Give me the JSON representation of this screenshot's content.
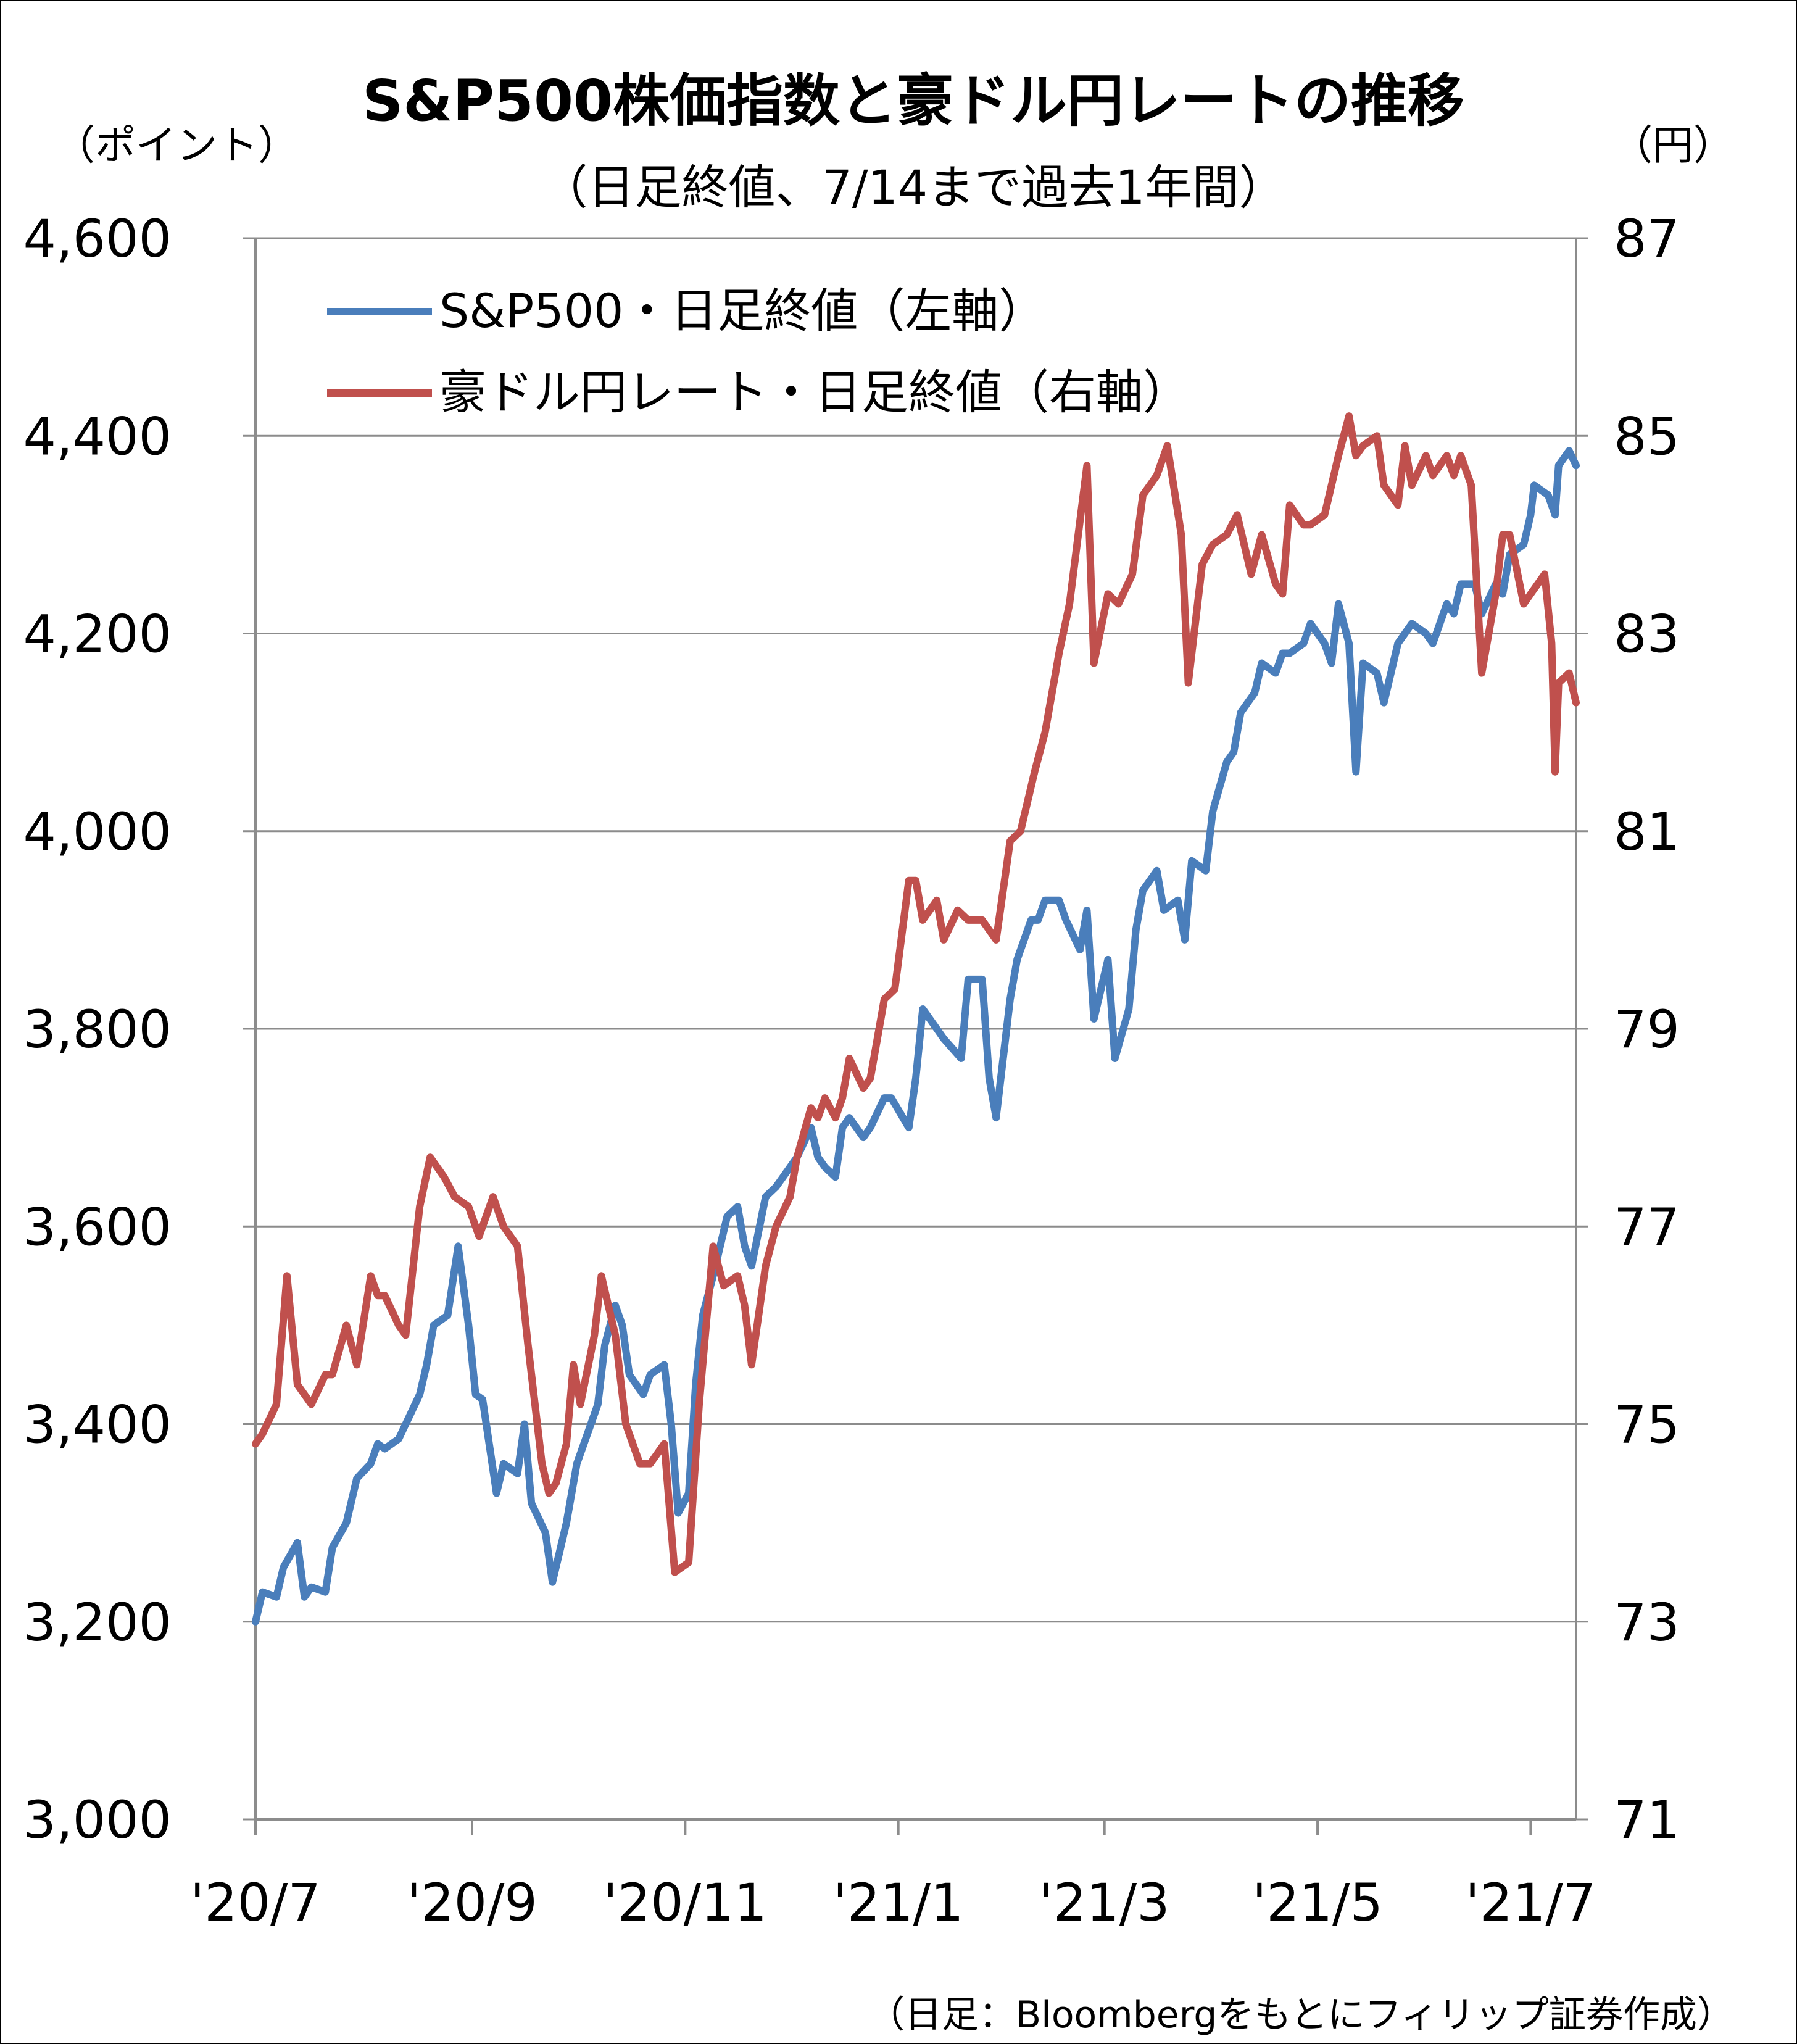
{
  "chart_data": {
    "type": "line",
    "title": "S&P500株価指数と豪ドル円レートの推移",
    "subtitle": "（日足終値、7/14まで過去1年間）",
    "y_left_unit": "（ポイント）",
    "y_right_unit": "（円）",
    "source": "（日足：Bloombergをもとにフィリップ証券作成）",
    "x_ticks": [
      "'20/7",
      "'20/9",
      "'20/11",
      "'21/1",
      "'21/3",
      "'21/5",
      "'21/7"
    ],
    "y_left_ticks": [
      "3,000",
      "3,200",
      "3,400",
      "3,600",
      "3,800",
      "4,000",
      "4,200",
      "4,400",
      "4,600"
    ],
    "y_right_ticks": [
      "71",
      "73",
      "75",
      "77",
      "79",
      "81",
      "83",
      "85",
      "87"
    ],
    "y_left_range": [
      3000,
      4600
    ],
    "y_right_range": [
      71,
      87
    ],
    "x_range": [
      "2020-07-01",
      "2021-07-14"
    ],
    "grid": "horizontal",
    "legend_position": "top-left",
    "series": [
      {
        "name": "S&P500・日足終値（左軸）",
        "axis": "left",
        "color": "#4a7ebb",
        "points": [
          [
            "2020-07-01",
            3200
          ],
          [
            "2020-07-03",
            3230
          ],
          [
            "2020-07-07",
            3225
          ],
          [
            "2020-07-09",
            3255
          ],
          [
            "2020-07-13",
            3280
          ],
          [
            "2020-07-15",
            3225
          ],
          [
            "2020-07-17",
            3235
          ],
          [
            "2020-07-21",
            3230
          ],
          [
            "2020-07-23",
            3275
          ],
          [
            "2020-07-27",
            3300
          ],
          [
            "2020-07-30",
            3345
          ],
          [
            "2020-08-03",
            3360
          ],
          [
            "2020-08-05",
            3380
          ],
          [
            "2020-08-07",
            3375
          ],
          [
            "2020-08-11",
            3385
          ],
          [
            "2020-08-13",
            3400
          ],
          [
            "2020-08-17",
            3430
          ],
          [
            "2020-08-19",
            3460
          ],
          [
            "2020-08-21",
            3500
          ],
          [
            "2020-08-25",
            3510
          ],
          [
            "2020-08-28",
            3580
          ],
          [
            "2020-08-31",
            3500
          ],
          [
            "2020-09-02",
            3430
          ],
          [
            "2020-09-04",
            3425
          ],
          [
            "2020-09-08",
            3330
          ],
          [
            "2020-09-10",
            3360
          ],
          [
            "2020-09-14",
            3350
          ],
          [
            "2020-09-16",
            3400
          ],
          [
            "2020-09-18",
            3320
          ],
          [
            "2020-09-22",
            3290
          ],
          [
            "2020-09-24",
            3240
          ],
          [
            "2020-09-28",
            3300
          ],
          [
            "2020-10-01",
            3360
          ],
          [
            "2020-10-05",
            3400
          ],
          [
            "2020-10-07",
            3420
          ],
          [
            "2020-10-09",
            3480
          ],
          [
            "2020-10-12",
            3520
          ],
          [
            "2020-10-14",
            3500
          ],
          [
            "2020-10-16",
            3450
          ],
          [
            "2020-10-20",
            3430
          ],
          [
            "2020-10-22",
            3450
          ],
          [
            "2020-10-26",
            3460
          ],
          [
            "2020-10-28",
            3400
          ],
          [
            "2020-10-30",
            3310
          ],
          [
            "2020-11-02",
            3330
          ],
          [
            "2020-11-04",
            3440
          ],
          [
            "2020-11-06",
            3510
          ],
          [
            "2020-11-09",
            3550
          ],
          [
            "2020-11-11",
            3580
          ],
          [
            "2020-11-13",
            3610
          ],
          [
            "2020-11-16",
            3620
          ],
          [
            "2020-11-18",
            3580
          ],
          [
            "2020-11-20",
            3560
          ],
          [
            "2020-11-24",
            3630
          ],
          [
            "2020-11-27",
            3640
          ],
          [
            "2020-12-01",
            3660
          ],
          [
            "2020-12-03",
            3670
          ],
          [
            "2020-12-07",
            3700
          ],
          [
            "2020-12-09",
            3670
          ],
          [
            "2020-12-11",
            3660
          ],
          [
            "2020-12-14",
            3650
          ],
          [
            "2020-12-16",
            3700
          ],
          [
            "2020-12-18",
            3710
          ],
          [
            "2020-12-22",
            3690
          ],
          [
            "2020-12-24",
            3700
          ],
          [
            "2020-12-28",
            3730
          ],
          [
            "2020-12-30",
            3730
          ],
          [
            "2021-01-04",
            3700
          ],
          [
            "2021-01-06",
            3750
          ],
          [
            "2021-01-08",
            3820
          ],
          [
            "2021-01-12",
            3800
          ],
          [
            "2021-01-14",
            3790
          ],
          [
            "2021-01-19",
            3770
          ],
          [
            "2021-01-21",
            3850
          ],
          [
            "2021-01-25",
            3850
          ],
          [
            "2021-01-27",
            3750
          ],
          [
            "2021-01-29",
            3710
          ],
          [
            "2021-02-02",
            3830
          ],
          [
            "2021-02-04",
            3870
          ],
          [
            "2021-02-08",
            3910
          ],
          [
            "2021-02-10",
            3910
          ],
          [
            "2021-02-12",
            3930
          ],
          [
            "2021-02-16",
            3930
          ],
          [
            "2021-02-18",
            3910
          ],
          [
            "2021-02-22",
            3880
          ],
          [
            "2021-02-24",
            3920
          ],
          [
            "2021-02-26",
            3810
          ],
          [
            "2021-03-02",
            3870
          ],
          [
            "2021-03-04",
            3770
          ],
          [
            "2021-03-08",
            3820
          ],
          [
            "2021-03-10",
            3900
          ],
          [
            "2021-03-12",
            3940
          ],
          [
            "2021-03-16",
            3960
          ],
          [
            "2021-03-18",
            3920
          ],
          [
            "2021-03-22",
            3930
          ],
          [
            "2021-03-24",
            3890
          ],
          [
            "2021-03-26",
            3970
          ],
          [
            "2021-03-30",
            3960
          ],
          [
            "2021-04-01",
            4020
          ],
          [
            "2021-04-05",
            4070
          ],
          [
            "2021-04-07",
            4080
          ],
          [
            "2021-04-09",
            4120
          ],
          [
            "2021-04-13",
            4140
          ],
          [
            "2021-04-15",
            4170
          ],
          [
            "2021-04-19",
            4160
          ],
          [
            "2021-04-21",
            4180
          ],
          [
            "2021-04-23",
            4180
          ],
          [
            "2021-04-27",
            4190
          ],
          [
            "2021-04-29",
            4210
          ],
          [
            "2021-05-03",
            4190
          ],
          [
            "2021-05-05",
            4170
          ],
          [
            "2021-05-07",
            4230
          ],
          [
            "2021-05-10",
            4190
          ],
          [
            "2021-05-12",
            4060
          ],
          [
            "2021-05-14",
            4170
          ],
          [
            "2021-05-18",
            4160
          ],
          [
            "2021-05-20",
            4130
          ],
          [
            "2021-05-24",
            4190
          ],
          [
            "2021-05-26",
            4200
          ],
          [
            "2021-05-28",
            4210
          ],
          [
            "2021-06-01",
            4200
          ],
          [
            "2021-06-03",
            4190
          ],
          [
            "2021-06-07",
            4230
          ],
          [
            "2021-06-09",
            4220
          ],
          [
            "2021-06-11",
            4250
          ],
          [
            "2021-06-15",
            4250
          ],
          [
            "2021-06-17",
            4220
          ],
          [
            "2021-06-21",
            4250
          ],
          [
            "2021-06-23",
            4240
          ],
          [
            "2021-06-25",
            4280
          ],
          [
            "2021-06-29",
            4290
          ],
          [
            "2021-07-01",
            4320
          ],
          [
            "2021-07-02",
            4350
          ],
          [
            "2021-07-06",
            4340
          ],
          [
            "2021-07-08",
            4320
          ],
          [
            "2021-07-09",
            4370
          ],
          [
            "2021-07-12",
            4385
          ],
          [
            "2021-07-14",
            4370
          ]
        ]
      },
      {
        "name": "豪ドル円レート・日足終値（右軸）",
        "axis": "right",
        "color": "#c0504d",
        "points": [
          [
            "2020-07-01",
            74.8
          ],
          [
            "2020-07-03",
            74.9
          ],
          [
            "2020-07-07",
            75.2
          ],
          [
            "2020-07-10",
            76.5
          ],
          [
            "2020-07-13",
            75.4
          ],
          [
            "2020-07-15",
            75.3
          ],
          [
            "2020-07-17",
            75.2
          ],
          [
            "2020-07-21",
            75.5
          ],
          [
            "2020-07-23",
            75.5
          ],
          [
            "2020-07-27",
            76.0
          ],
          [
            "2020-07-30",
            75.6
          ],
          [
            "2020-08-03",
            76.5
          ],
          [
            "2020-08-05",
            76.3
          ],
          [
            "2020-08-07",
            76.3
          ],
          [
            "2020-08-11",
            76.0
          ],
          [
            "2020-08-13",
            75.9
          ],
          [
            "2020-08-17",
            77.2
          ],
          [
            "2020-08-20",
            77.7
          ],
          [
            "2020-08-24",
            77.5
          ],
          [
            "2020-08-27",
            77.3
          ],
          [
            "2020-08-31",
            77.2
          ],
          [
            "2020-09-03",
            76.9
          ],
          [
            "2020-09-07",
            77.3
          ],
          [
            "2020-09-10",
            77.0
          ],
          [
            "2020-09-14",
            76.8
          ],
          [
            "2020-09-17",
            75.8
          ],
          [
            "2020-09-21",
            74.6
          ],
          [
            "2020-09-23",
            74.3
          ],
          [
            "2020-09-25",
            74.4
          ],
          [
            "2020-09-28",
            74.8
          ],
          [
            "2020-09-30",
            75.6
          ],
          [
            "2020-10-02",
            75.2
          ],
          [
            "2020-10-06",
            75.9
          ],
          [
            "2020-10-08",
            76.5
          ],
          [
            "2020-10-12",
            75.9
          ],
          [
            "2020-10-15",
            75.0
          ],
          [
            "2020-10-19",
            74.6
          ],
          [
            "2020-10-22",
            74.6
          ],
          [
            "2020-10-26",
            74.8
          ],
          [
            "2020-10-29",
            73.5
          ],
          [
            "2020-11-02",
            73.6
          ],
          [
            "2020-11-05",
            75.2
          ],
          [
            "2020-11-09",
            76.8
          ],
          [
            "2020-11-12",
            76.4
          ],
          [
            "2020-11-16",
            76.5
          ],
          [
            "2020-11-18",
            76.2
          ],
          [
            "2020-11-20",
            75.6
          ],
          [
            "2020-11-24",
            76.6
          ],
          [
            "2020-11-27",
            77.0
          ],
          [
            "2020-12-01",
            77.3
          ],
          [
            "2020-12-03",
            77.7
          ],
          [
            "2020-12-07",
            78.2
          ],
          [
            "2020-12-09",
            78.1
          ],
          [
            "2020-12-11",
            78.3
          ],
          [
            "2020-12-14",
            78.1
          ],
          [
            "2020-12-16",
            78.3
          ],
          [
            "2020-12-18",
            78.7
          ],
          [
            "2020-12-22",
            78.4
          ],
          [
            "2020-12-24",
            78.5
          ],
          [
            "2020-12-28",
            79.3
          ],
          [
            "2020-12-31",
            79.4
          ],
          [
            "2021-01-04",
            80.5
          ],
          [
            "2021-01-06",
            80.5
          ],
          [
            "2021-01-08",
            80.1
          ],
          [
            "2021-01-12",
            80.3
          ],
          [
            "2021-01-14",
            79.9
          ],
          [
            "2021-01-18",
            80.2
          ],
          [
            "2021-01-21",
            80.1
          ],
          [
            "2021-01-25",
            80.1
          ],
          [
            "2021-01-27",
            80.0
          ],
          [
            "2021-01-29",
            79.9
          ],
          [
            "2021-02-02",
            80.9
          ],
          [
            "2021-02-05",
            81.0
          ],
          [
            "2021-02-09",
            81.6
          ],
          [
            "2021-02-12",
            82.0
          ],
          [
            "2021-02-16",
            82.8
          ],
          [
            "2021-02-19",
            83.3
          ],
          [
            "2021-02-24",
            84.7
          ],
          [
            "2021-02-26",
            82.7
          ],
          [
            "2021-03-02",
            83.4
          ],
          [
            "2021-03-05",
            83.3
          ],
          [
            "2021-03-09",
            83.6
          ],
          [
            "2021-03-12",
            84.4
          ],
          [
            "2021-03-16",
            84.6
          ],
          [
            "2021-03-19",
            84.9
          ],
          [
            "2021-03-23",
            84.0
          ],
          [
            "2021-03-25",
            82.5
          ],
          [
            "2021-03-29",
            83.7
          ],
          [
            "2021-04-01",
            83.9
          ],
          [
            "2021-04-05",
            84.0
          ],
          [
            "2021-04-08",
            84.2
          ],
          [
            "2021-04-12",
            83.6
          ],
          [
            "2021-04-15",
            84.0
          ],
          [
            "2021-04-19",
            83.5
          ],
          [
            "2021-04-21",
            83.4
          ],
          [
            "2021-04-23",
            84.3
          ],
          [
            "2021-04-27",
            84.1
          ],
          [
            "2021-04-29",
            84.1
          ],
          [
            "2021-05-03",
            84.2
          ],
          [
            "2021-05-05",
            84.5
          ],
          [
            "2021-05-07",
            84.8
          ],
          [
            "2021-05-10",
            85.2
          ],
          [
            "2021-05-12",
            84.8
          ],
          [
            "2021-05-14",
            84.9
          ],
          [
            "2021-05-18",
            85.0
          ],
          [
            "2021-05-20",
            84.5
          ],
          [
            "2021-05-24",
            84.3
          ],
          [
            "2021-05-26",
            84.9
          ],
          [
            "2021-05-28",
            84.5
          ],
          [
            "2021-06-01",
            84.8
          ],
          [
            "2021-06-03",
            84.6
          ],
          [
            "2021-06-07",
            84.8
          ],
          [
            "2021-06-09",
            84.6
          ],
          [
            "2021-06-11",
            84.8
          ],
          [
            "2021-06-14",
            84.5
          ],
          [
            "2021-06-17",
            82.6
          ],
          [
            "2021-06-21",
            83.4
          ],
          [
            "2021-06-23",
            84.0
          ],
          [
            "2021-06-25",
            84.0
          ],
          [
            "2021-06-29",
            83.3
          ],
          [
            "2021-07-01",
            83.4
          ],
          [
            "2021-07-05",
            83.6
          ],
          [
            "2021-07-07",
            82.9
          ],
          [
            "2021-07-08",
            81.6
          ],
          [
            "2021-07-09",
            82.5
          ],
          [
            "2021-07-12",
            82.6
          ],
          [
            "2021-07-14",
            82.3
          ]
        ]
      }
    ]
  }
}
